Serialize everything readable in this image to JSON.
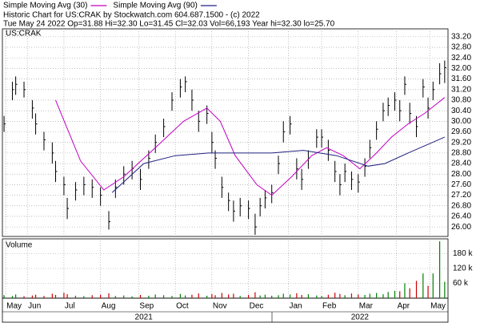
{
  "chart_data": {
    "type": "ohlc",
    "title": "Historic Chart for US:CRAK by Stockwatch.com 604.687.1500 - (c) 2022",
    "info": "Tue May 24 2022  Op=31.88  Hi=32.30  Lo=31.45  Cl=32.03  Vol=66,193  Year hi=32.30  lo=25.70",
    "symbol": "US:CRAK",
    "volume_label": "Volume",
    "bar_color": "#000000",
    "xlim": [
      0,
      268
    ],
    "x": [
      1,
      6,
      8,
      13,
      18,
      20,
      25,
      30,
      32,
      37,
      39,
      44,
      49,
      54,
      59,
      64,
      68,
      73,
      78,
      83,
      88,
      92,
      97,
      102,
      107,
      110,
      114,
      118,
      123,
      126,
      128,
      132,
      136,
      139,
      143,
      148,
      152,
      155,
      158,
      162,
      166,
      169,
      173,
      177,
      180,
      184,
      189,
      192,
      196,
      200,
      203,
      206,
      210,
      214,
      218,
      221,
      225,
      229,
      232,
      236,
      239,
      242,
      245,
      249,
      253,
      256,
      259,
      263,
      266
    ],
    "high": [
      30.2,
      31.5,
      31.7,
      31.5,
      30.8,
      30.3,
      29.6,
      29.2,
      28.5,
      27.9,
      27.1,
      27.7,
      27.9,
      27.8,
      27.5,
      26.6,
      27.8,
      28.3,
      28.5,
      28.2,
      28.9,
      29.5,
      30.1,
      31.1,
      31.6,
      31.7,
      31.2,
      30.4,
      30.6,
      29.6,
      28.9,
      27.9,
      27.3,
      27.0,
      27.1,
      27.0,
      26.5,
      27.1,
      27.4,
      27.6,
      28.7,
      30.0,
      30.2,
      28.6,
      28.2,
      28.9,
      29.7,
      29.7,
      29.3,
      28.5,
      28.0,
      28.4,
      28.1,
      28.0,
      28.6,
      29.3,
      30.0,
      30.7,
      30.9,
      31.1,
      30.8,
      31.7,
      30.7,
      30.2,
      31.6,
      30.9,
      31.5,
      32.2,
      32.3
    ],
    "low": [
      29.6,
      30.8,
      31.0,
      30.9,
      30.1,
      29.5,
      28.9,
      28.4,
      27.7,
      27.2,
      26.3,
      27.0,
      27.2,
      27.1,
      26.8,
      25.9,
      27.1,
      27.6,
      27.8,
      27.4,
      28.2,
      28.8,
      29.4,
      30.4,
      30.9,
      31.1,
      30.4,
      29.6,
      29.9,
      28.8,
      28.2,
      27.1,
      26.6,
      26.2,
      26.4,
      26.3,
      25.7,
      26.4,
      26.7,
      26.9,
      28.0,
      29.2,
      29.5,
      27.8,
      27.4,
      28.2,
      29.0,
      29.0,
      28.5,
      27.7,
      27.2,
      27.7,
      27.4,
      27.3,
      27.9,
      28.6,
      29.3,
      30.0,
      30.2,
      30.4,
      30.0,
      31.0,
      29.9,
      29.4,
      30.9,
      30.1,
      30.8,
      31.4,
      31.45
    ],
    "close": [
      29.9,
      31.2,
      31.4,
      31.2,
      30.5,
      29.9,
      29.3,
      28.8,
      28.1,
      27.6,
      26.7,
      27.4,
      27.6,
      27.5,
      27.2,
      26.2,
      27.5,
      28.0,
      28.2,
      27.8,
      28.6,
      29.2,
      29.8,
      30.8,
      31.3,
      31.5,
      30.8,
      30.0,
      30.3,
      29.2,
      28.6,
      27.5,
      27.0,
      26.6,
      26.8,
      26.7,
      26.0,
      26.8,
      27.1,
      27.3,
      28.4,
      29.6,
      29.9,
      28.2,
      27.8,
      28.6,
      29.4,
      29.4,
      28.9,
      28.1,
      27.6,
      28.1,
      27.8,
      27.7,
      28.3,
      29.0,
      29.7,
      30.4,
      30.6,
      30.8,
      30.4,
      31.4,
      30.3,
      29.8,
      31.3,
      30.5,
      31.2,
      31.8,
      32.03
    ],
    "volume": [
      12000,
      9000,
      15000,
      8000,
      11000,
      14000,
      9000,
      18000,
      13000,
      22000,
      16000,
      10000,
      8000,
      12000,
      14000,
      20000,
      9000,
      11000,
      7000,
      13000,
      10000,
      15000,
      12000,
      9000,
      17000,
      11000,
      14000,
      19000,
      10000,
      16000,
      12000,
      21000,
      15000,
      18000,
      9000,
      13000,
      24000,
      11000,
      14000,
      10000,
      12000,
      18000,
      15000,
      20000,
      13000,
      16000,
      11000,
      9000,
      14000,
      22000,
      17000,
      12000,
      19000,
      15000,
      13000,
      18000,
      21000,
      16000,
      25000,
      30000,
      28000,
      60000,
      40000,
      70000,
      100000,
      50000,
      100000,
      230000,
      66193
    ],
    "up_color": "#008000",
    "down_color": "#cc0000",
    "ylim": [
      25.64,
      33.5
    ],
    "yticks": [
      {
        "value": 33.2,
        "label": "33.20"
      },
      {
        "value": 32.8,
        "label": "32.80"
      },
      {
        "value": 32.4,
        "label": "32.40"
      },
      {
        "value": 32.0,
        "label": "32.00"
      },
      {
        "value": 31.6,
        "label": "31.60"
      },
      {
        "value": 31.2,
        "label": "31.20"
      },
      {
        "value": 30.8,
        "label": "30.80"
      },
      {
        "value": 30.4,
        "label": "30.40"
      },
      {
        "value": 30.0,
        "label": "30.00"
      },
      {
        "value": 29.6,
        "label": "29.60"
      },
      {
        "value": 29.2,
        "label": "29.20"
      },
      {
        "value": 28.8,
        "label": "28.80"
      },
      {
        "value": 28.4,
        "label": "28.40"
      },
      {
        "value": 28.0,
        "label": "28.00"
      },
      {
        "value": 27.6,
        "label": "27.60"
      },
      {
        "value": 27.2,
        "label": "27.20"
      },
      {
        "value": 26.8,
        "label": "26.80"
      },
      {
        "value": 26.4,
        "label": "26.40"
      },
      {
        "value": 26.0,
        "label": "26.00"
      }
    ],
    "vol_ylim": [
      0,
      240000
    ],
    "vol_yticks": [
      {
        "value": 180000,
        "label": "180 k"
      },
      {
        "value": 120000,
        "label": "120 k"
      },
      {
        "value": 60000,
        "label": "60 k"
      }
    ],
    "xticks": [
      {
        "value": 2,
        "label": "May"
      },
      {
        "value": 15,
        "label": "Jun"
      },
      {
        "value": 37,
        "label": "Jul"
      },
      {
        "value": 59,
        "label": "Aug"
      },
      {
        "value": 82,
        "label": "Sep"
      },
      {
        "value": 104,
        "label": "Oct"
      },
      {
        "value": 126,
        "label": "Nov"
      },
      {
        "value": 148,
        "label": "Dec"
      },
      {
        "value": 172,
        "label": "Jan"
      },
      {
        "value": 192,
        "label": "Feb"
      },
      {
        "value": 214,
        "label": "Mar"
      },
      {
        "value": 237,
        "label": "Apr"
      },
      {
        "value": 257,
        "label": "May"
      }
    ],
    "years": [
      {
        "value": 85,
        "label": "2021"
      },
      {
        "value": 215,
        "label": "2022"
      }
    ],
    "grid": true,
    "series": [
      {
        "name": "Simple Moving Avg (30)",
        "color": "#c000c0",
        "x": [
          32,
          47,
          61,
          73,
          92,
          109,
          123,
          131,
          140,
          153,
          162,
          174,
          186,
          195,
          205,
          215,
          225,
          234,
          244,
          254,
          266
        ],
        "values": [
          30.8,
          28.5,
          27.4,
          27.9,
          29.0,
          30.0,
          30.5,
          30.0,
          28.7,
          27.6,
          27.2,
          27.9,
          28.7,
          29.0,
          28.7,
          28.2,
          28.8,
          29.4,
          29.9,
          30.3,
          30.9
        ]
      },
      {
        "name": "Simple Moving Avg (90)",
        "color": "#202080",
        "x": [
          66,
          85,
          104,
          124,
          143,
          162,
          181,
          201,
          220,
          230,
          244,
          266
        ],
        "values": [
          27.3,
          28.4,
          28.7,
          28.8,
          28.8,
          28.8,
          28.9,
          28.7,
          28.3,
          28.4,
          28.8,
          29.4
        ]
      }
    ]
  }
}
